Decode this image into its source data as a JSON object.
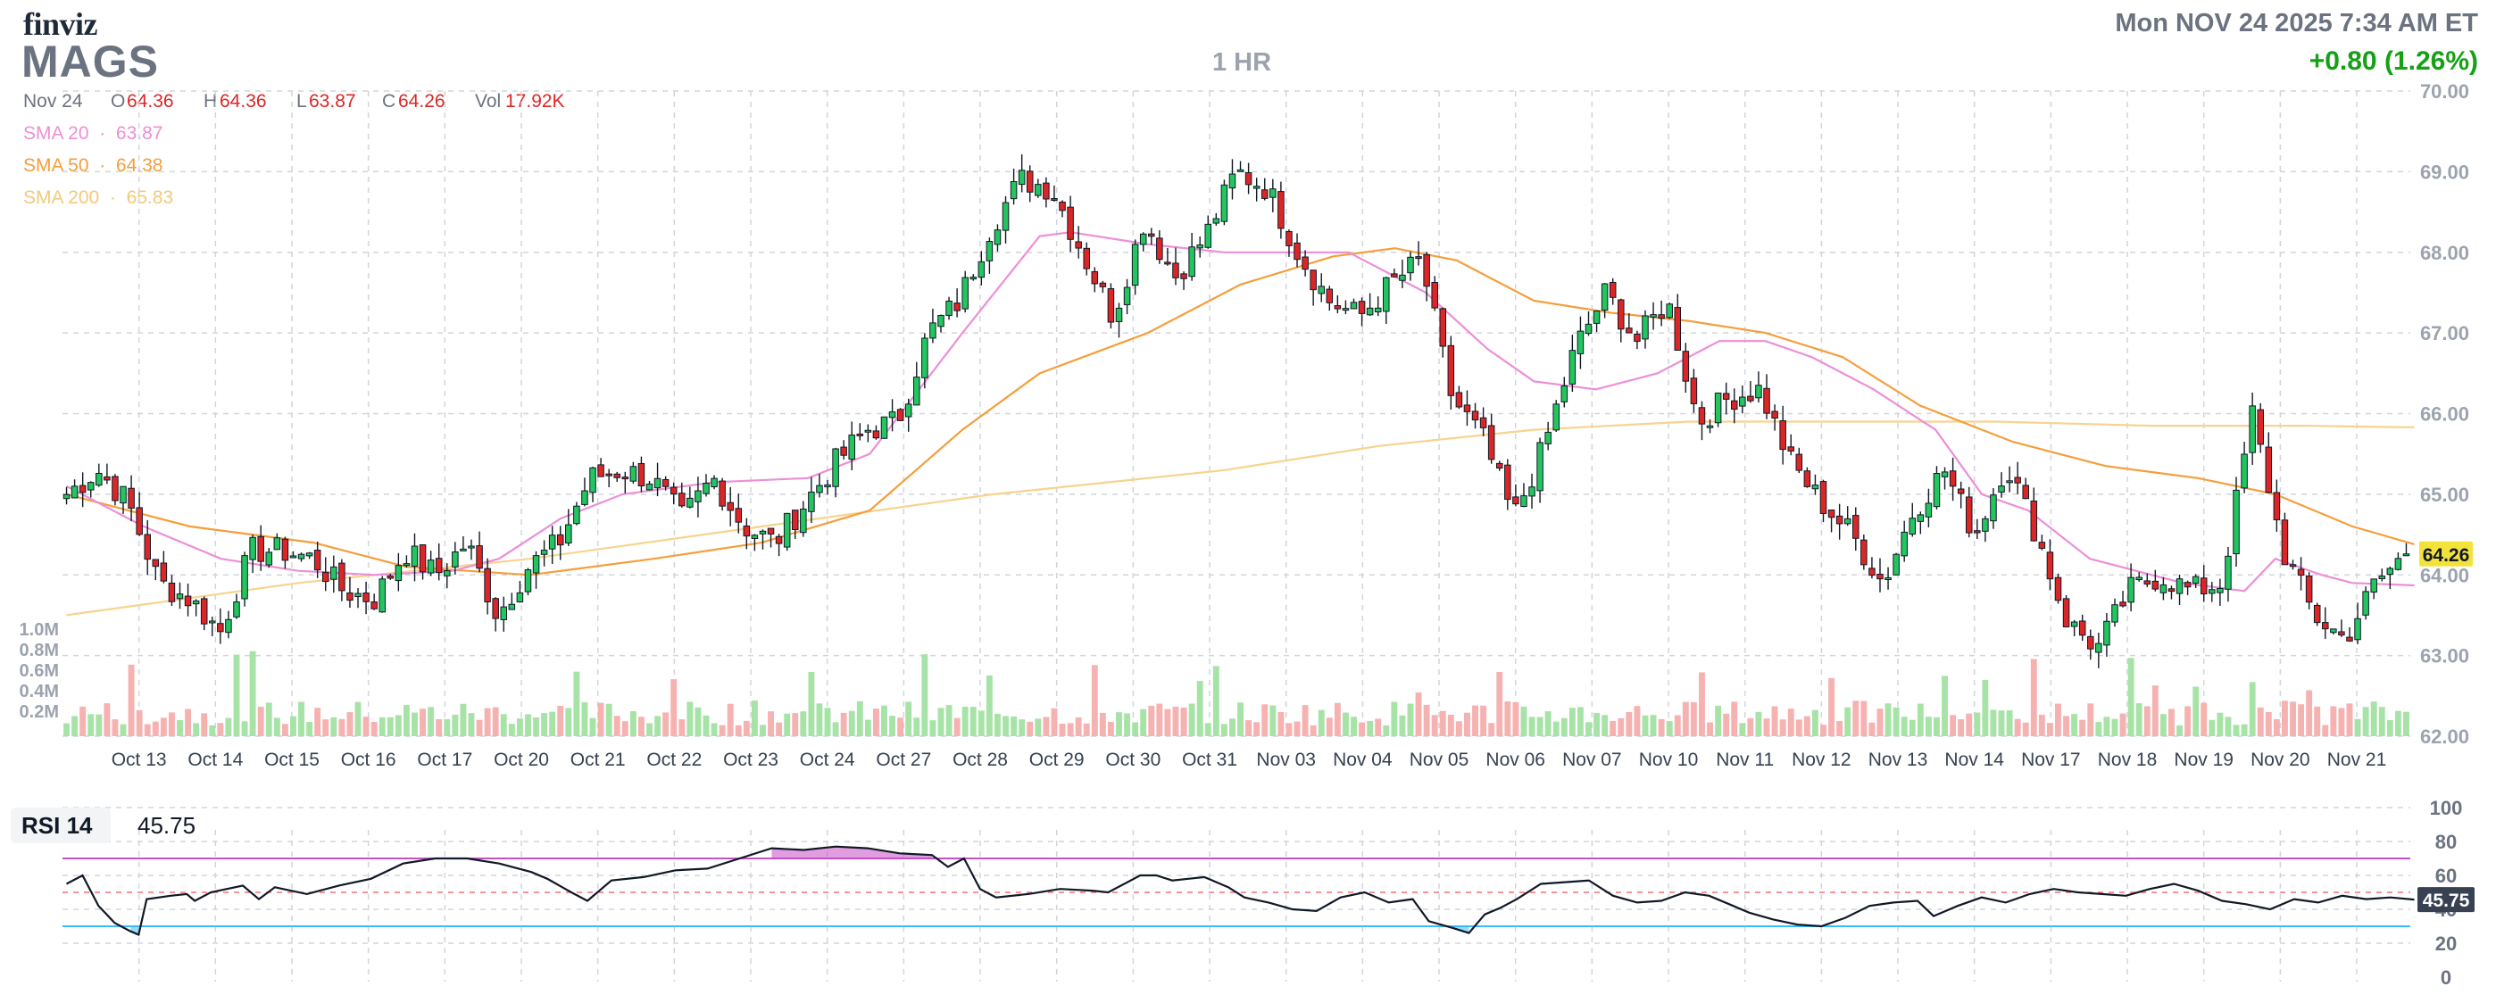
{
  "header": {
    "logo": "finviz",
    "ticker": "MAGS",
    "timeframe": "1 HR",
    "datetime": "Mon NOV 24 2025 7:34 AM ET",
    "change": "+0.80 (1.26%)",
    "change_color": "#15a015"
  },
  "ohlc": {
    "date": "Nov 24",
    "o_label": "O",
    "o": "64.36",
    "h_label": "H",
    "h": "64.36",
    "l_label": "L",
    "l": "63.87",
    "c_label": "C",
    "c": "64.26",
    "vol_label": "Vol",
    "vol": "17.92K"
  },
  "sma": [
    {
      "label": "SMA 20",
      "value": "63.87",
      "color": "#ec8fd8"
    },
    {
      "label": "SMA 50",
      "value": "64.38",
      "color": "#f59e3b"
    },
    {
      "label": "SMA 200",
      "value": "65.83",
      "color": "#f7d38f"
    }
  ],
  "price_tag": "64.26",
  "rsi": {
    "label": "RSI 14",
    "value": "45.75",
    "tag": "45.75"
  },
  "colors": {
    "up": "#22c55e",
    "down": "#dc2626",
    "grid": "#d1d5db",
    "rsi_over": "#c64fc8",
    "rsi_under": "#38bdf8"
  },
  "chart_data": [
    {
      "type": "candlestick",
      "title": "MAGS",
      "ylim": [
        62,
        70
      ],
      "yticks": [
        "62.00",
        "63.00",
        "64.00",
        "65.00",
        "66.00",
        "67.00",
        "68.00",
        "69.00",
        "70.00"
      ],
      "volume_ticks": [
        "1.0M",
        "0.8M",
        "0.6M",
        "0.4M",
        "0.2M"
      ],
      "xlabels": [
        "Oct 13",
        "Oct 14",
        "Oct 15",
        "Oct 16",
        "Oct 17",
        "Oct 20",
        "Oct 21",
        "Oct 22",
        "Oct 23",
        "Oct 24",
        "Oct 27",
        "Oct 28",
        "Oct 29",
        "Oct 30",
        "Oct 31",
        "Nov 03",
        "Nov 04",
        "Nov 05",
        "Nov 06",
        "Nov 07",
        "Nov 10",
        "Nov 11",
        "Nov 12",
        "Nov 13",
        "Nov 14",
        "Nov 17",
        "Nov 18",
        "Nov 19",
        "Nov 20",
        "Nov 21"
      ],
      "close_anchors": [
        65.0,
        65.3,
        64.9,
        63.9,
        63.7,
        63.3,
        64.3,
        64.3,
        64.2,
        63.8,
        63.7,
        64.3,
        64.0,
        64.4,
        63.5,
        64.1,
        64.4,
        65.2,
        65.3,
        65.2,
        64.7,
        65.2,
        64.6,
        64.4,
        64.9,
        65.4,
        65.8,
        65.9,
        67.0,
        67.4,
        68.3,
        68.9,
        68.8,
        68.0,
        67.2,
        68.4,
        67.7,
        68.2,
        69.0,
        68.8,
        68.0,
        67.4,
        67.2,
        67.6,
        67.9,
        66.2,
        65.7,
        64.7,
        65.6,
        66.8,
        67.5,
        66.9,
        67.4,
        65.9,
        66.2,
        66.3,
        65.4,
        64.9,
        64.5,
        63.9,
        64.8,
        65.3,
        64.5,
        65.4,
        64.5,
        63.4,
        63.1,
        63.8,
        64.0,
        63.8,
        63.9,
        66.0,
        64.3,
        63.5,
        63.2,
        63.9,
        64.26
      ],
      "sma20": [
        [
          0,
          65.1
        ],
        [
          5,
          64.6
        ],
        [
          10,
          64.2
        ],
        [
          15,
          64.05
        ],
        [
          20,
          64.0
        ],
        [
          25,
          64.05
        ],
        [
          28,
          64.2
        ],
        [
          32,
          64.7
        ],
        [
          36,
          65.0
        ],
        [
          42,
          65.15
        ],
        [
          48,
          65.2
        ],
        [
          52,
          65.5
        ],
        [
          58,
          67.0
        ],
        [
          63,
          68.2
        ],
        [
          65,
          68.25
        ],
        [
          70,
          68.1
        ],
        [
          75,
          68.0
        ],
        [
          80,
          68.0
        ],
        [
          83,
          68.0
        ],
        [
          88,
          67.5
        ],
        [
          92,
          66.8
        ],
        [
          95,
          66.4
        ],
        [
          99,
          66.3
        ],
        [
          103,
          66.5
        ],
        [
          107,
          66.9
        ],
        [
          110,
          66.9
        ],
        [
          113,
          66.7
        ],
        [
          117,
          66.3
        ],
        [
          121,
          65.8
        ],
        [
          124,
          65.0
        ],
        [
          127,
          64.8
        ],
        [
          131,
          64.2
        ],
        [
          137,
          63.9
        ],
        [
          141,
          63.8
        ],
        [
          143,
          64.2
        ],
        [
          146,
          64.0
        ],
        [
          148,
          63.9
        ],
        [
          152,
          63.87
        ]
      ],
      "sma50": [
        [
          0,
          65.0
        ],
        [
          8,
          64.6
        ],
        [
          16,
          64.4
        ],
        [
          22,
          64.1
        ],
        [
          30,
          64.0
        ],
        [
          38,
          64.2
        ],
        [
          45,
          64.4
        ],
        [
          52,
          64.8
        ],
        [
          58,
          65.8
        ],
        [
          63,
          66.5
        ],
        [
          70,
          67.0
        ],
        [
          76,
          67.6
        ],
        [
          82,
          67.95
        ],
        [
          86,
          68.05
        ],
        [
          90,
          67.9
        ],
        [
          95,
          67.4
        ],
        [
          100,
          67.25
        ],
        [
          105,
          67.15
        ],
        [
          110,
          67.0
        ],
        [
          115,
          66.7
        ],
        [
          120,
          66.1
        ],
        [
          126,
          65.65
        ],
        [
          132,
          65.35
        ],
        [
          138,
          65.2
        ],
        [
          143,
          65.0
        ],
        [
          148,
          64.6
        ],
        [
          152,
          64.38
        ]
      ],
      "sma200": [
        [
          0,
          63.5
        ],
        [
          15,
          63.9
        ],
        [
          30,
          64.2
        ],
        [
          45,
          64.6
        ],
        [
          60,
          65.0
        ],
        [
          75,
          65.3
        ],
        [
          85,
          65.6
        ],
        [
          95,
          65.8
        ],
        [
          105,
          65.9
        ],
        [
          115,
          65.9
        ],
        [
          125,
          65.9
        ],
        [
          135,
          65.85
        ],
        [
          145,
          65.85
        ],
        [
          152,
          65.83
        ]
      ]
    },
    {
      "type": "line",
      "title": "RSI 14",
      "ylim": [
        0,
        100
      ],
      "yticks": [
        "0",
        "20",
        "40",
        "60",
        "80",
        "100"
      ],
      "overbought": 70,
      "oversold": 30,
      "last": 45.75,
      "rsi_anchors": [
        [
          0,
          55
        ],
        [
          2,
          60
        ],
        [
          4,
          42
        ],
        [
          6,
          32
        ],
        [
          8,
          27
        ],
        [
          9,
          25
        ],
        [
          10,
          46
        ],
        [
          13,
          48
        ],
        [
          15,
          49
        ],
        [
          16,
          45
        ],
        [
          18,
          50
        ],
        [
          22,
          54
        ],
        [
          24,
          46
        ],
        [
          26,
          53
        ],
        [
          30,
          49
        ],
        [
          34,
          54
        ],
        [
          38,
          58
        ],
        [
          42,
          67
        ],
        [
          46,
          70
        ],
        [
          50,
          70
        ],
        [
          54,
          67
        ],
        [
          58,
          62
        ],
        [
          60,
          58
        ],
        [
          63,
          50
        ],
        [
          65,
          45
        ],
        [
          68,
          57
        ],
        [
          72,
          59
        ],
        [
          76,
          63
        ],
        [
          80,
          64
        ],
        [
          84,
          70
        ],
        [
          88,
          76
        ],
        [
          92,
          75
        ],
        [
          96,
          77
        ],
        [
          100,
          76
        ],
        [
          104,
          73
        ],
        [
          108,
          72
        ],
        [
          110,
          65
        ],
        [
          112,
          70
        ],
        [
          114,
          52
        ],
        [
          116,
          47
        ],
        [
          120,
          49
        ],
        [
          124,
          52
        ],
        [
          128,
          51
        ],
        [
          130,
          50
        ],
        [
          134,
          60
        ],
        [
          136,
          60
        ],
        [
          138,
          57
        ],
        [
          140,
          58
        ],
        [
          142,
          59
        ],
        [
          145,
          53
        ],
        [
          147,
          47
        ],
        [
          150,
          44
        ],
        [
          153,
          40
        ],
        [
          156,
          39
        ],
        [
          159,
          47
        ],
        [
          162,
          50
        ],
        [
          165,
          44
        ],
        [
          168,
          46
        ],
        [
          170,
          33
        ],
        [
          173,
          29
        ],
        [
          175,
          26
        ],
        [
          177,
          37
        ],
        [
          179,
          41
        ],
        [
          181,
          46
        ],
        [
          184,
          55
        ],
        [
          187,
          56
        ],
        [
          190,
          57
        ],
        [
          193,
          48
        ],
        [
          196,
          44
        ],
        [
          199,
          45
        ],
        [
          202,
          50
        ],
        [
          205,
          48
        ],
        [
          208,
          42
        ],
        [
          210,
          38
        ],
        [
          213,
          34
        ],
        [
          216,
          31
        ],
        [
          219,
          30
        ],
        [
          222,
          35
        ],
        [
          225,
          42
        ],
        [
          228,
          44
        ],
        [
          231,
          45
        ],
        [
          233,
          36
        ],
        [
          236,
          42
        ],
        [
          239,
          47
        ],
        [
          242,
          44
        ],
        [
          245,
          49
        ],
        [
          248,
          52
        ],
        [
          251,
          50
        ],
        [
          254,
          49
        ],
        [
          257,
          48
        ],
        [
          260,
          52
        ],
        [
          263,
          55
        ],
        [
          266,
          51
        ],
        [
          269,
          45
        ],
        [
          272,
          43
        ],
        [
          275,
          40
        ],
        [
          278,
          46
        ],
        [
          281,
          44
        ],
        [
          284,
          48
        ],
        [
          287,
          46
        ],
        [
          290,
          47
        ],
        [
          293,
          45.75
        ]
      ]
    }
  ]
}
